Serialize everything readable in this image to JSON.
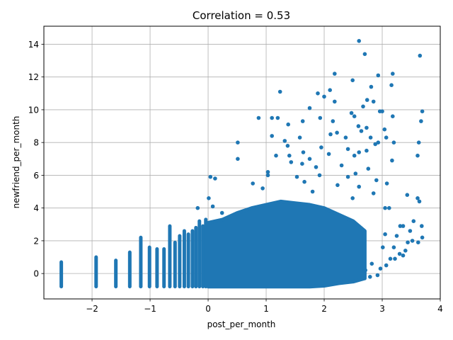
{
  "chart_data": {
    "type": "scatter",
    "title": "Correlation = 0.53",
    "xlabel": "post_per_month",
    "ylabel": "newfriend_per_month",
    "xlim": [
      -2.83,
      4.0
    ],
    "ylim": [
      -1.55,
      15.1
    ],
    "xticks": [
      -2,
      -1,
      0,
      1,
      2,
      3,
      4
    ],
    "yticks": [
      0,
      2,
      4,
      6,
      8,
      10,
      12,
      14
    ],
    "xtick_labels": [
      "−2",
      "−1",
      "0",
      "1",
      "2",
      "3",
      "4"
    ],
    "ytick_labels": [
      "0",
      "2",
      "4",
      "6",
      "8",
      "10",
      "12",
      "14"
    ],
    "grid": true,
    "marker_color": "#1f77b4",
    "columns": [
      {
        "x": -2.53,
        "ymin": -0.8,
        "ymax": 0.7
      },
      {
        "x": -1.93,
        "ymin": -0.8,
        "ymax": 1.0
      },
      {
        "x": -1.59,
        "ymin": -0.8,
        "ymax": 0.8
      },
      {
        "x": -1.35,
        "ymin": -0.8,
        "ymax": 1.3
      },
      {
        "x": -1.16,
        "ymin": -0.8,
        "ymax": 2.2
      },
      {
        "x": -1.01,
        "ymin": -0.8,
        "ymax": 1.6
      },
      {
        "x": -0.88,
        "ymin": -0.8,
        "ymax": 1.5
      },
      {
        "x": -0.76,
        "ymin": -0.8,
        "ymax": 1.5
      },
      {
        "x": -0.66,
        "ymin": -0.8,
        "ymax": 2.9
      },
      {
        "x": -0.57,
        "ymin": -0.8,
        "ymax": 1.9
      },
      {
        "x": -0.49,
        "ymin": -0.8,
        "ymax": 2.3
      },
      {
        "x": -0.41,
        "ymin": -0.8,
        "ymax": 2.6
      },
      {
        "x": -0.34,
        "ymin": -0.8,
        "ymax": 2.4
      },
      {
        "x": -0.27,
        "ymin": -0.8,
        "ymax": 2.6
      },
      {
        "x": -0.21,
        "ymin": -0.8,
        "ymax": 2.8
      },
      {
        "x": -0.15,
        "ymin": -0.8,
        "ymax": 3.2
      },
      {
        "x": -0.09,
        "ymin": -0.8,
        "ymax": 2.9
      },
      {
        "x": -0.04,
        "ymin": -0.8,
        "ymax": 3.3
      }
    ],
    "dense_band": [
      [
        0.0,
        -0.8,
        3.1
      ],
      [
        0.25,
        -0.8,
        3.3
      ],
      [
        0.5,
        -0.8,
        3.7
      ],
      [
        0.75,
        -0.8,
        4.0
      ],
      [
        1.0,
        -0.8,
        4.2
      ],
      [
        1.25,
        -0.8,
        4.4
      ],
      [
        1.5,
        -0.8,
        4.3
      ],
      [
        1.75,
        -0.8,
        4.2
      ],
      [
        2.0,
        -0.75,
        4.0
      ],
      [
        2.25,
        -0.6,
        3.6
      ],
      [
        2.5,
        -0.5,
        3.2
      ],
      [
        2.7,
        -0.3,
        2.6
      ]
    ],
    "points": [
      [
        2.6,
        14.2
      ],
      [
        2.7,
        13.4
      ],
      [
        3.65,
        13.3
      ],
      [
        2.18,
        12.2
      ],
      [
        2.49,
        11.8
      ],
      [
        3.18,
        12.2
      ],
      [
        2.93,
        12.1
      ],
      [
        3.16,
        11.5
      ],
      [
        2.81,
        11.4
      ],
      [
        2.1,
        11.2
      ],
      [
        1.89,
        11.0
      ],
      [
        1.24,
        11.1
      ],
      [
        2.0,
        10.8
      ],
      [
        2.74,
        10.6
      ],
      [
        2.85,
        10.5
      ],
      [
        2.18,
        10.5
      ],
      [
        1.75,
        10.1
      ],
      [
        2.67,
        10.2
      ],
      [
        2.96,
        9.9
      ],
      [
        3.0,
        9.9
      ],
      [
        3.69,
        9.9
      ],
      [
        1.1,
        9.5
      ],
      [
        1.2,
        9.5
      ],
      [
        0.87,
        9.5
      ],
      [
        1.93,
        9.5
      ],
      [
        2.47,
        9.8
      ],
      [
        2.52,
        9.6
      ],
      [
        3.18,
        9.6
      ],
      [
        3.67,
        9.3
      ],
      [
        2.15,
        9.3
      ],
      [
        1.38,
        9.1
      ],
      [
        1.63,
        9.3
      ],
      [
        2.59,
        9.0
      ],
      [
        2.73,
        8.9
      ],
      [
        3.04,
        8.8
      ],
      [
        2.64,
        8.7
      ],
      [
        3.07,
        8.3
      ],
      [
        2.22,
        8.6
      ],
      [
        2.37,
        8.3
      ],
      [
        2.11,
        8.5
      ],
      [
        1.1,
        8.4
      ],
      [
        1.32,
        8.1
      ],
      [
        3.2,
        8.0
      ],
      [
        0.51,
        8.0
      ],
      [
        1.58,
        8.3
      ],
      [
        2.8,
        8.3
      ],
      [
        2.93,
        8.0
      ],
      [
        3.63,
        8.0
      ],
      [
        1.37,
        7.8
      ],
      [
        2.73,
        7.5
      ],
      [
        2.88,
        7.9
      ],
      [
        2.41,
        7.6
      ],
      [
        1.95,
        7.7
      ],
      [
        1.17,
        7.2
      ],
      [
        1.4,
        7.2
      ],
      [
        1.64,
        7.4
      ],
      [
        2.08,
        7.3
      ],
      [
        2.52,
        7.2
      ],
      [
        2.6,
        7.4
      ],
      [
        3.61,
        7.2
      ],
      [
        0.51,
        7.0
      ],
      [
        1.75,
        7.0
      ],
      [
        1.43,
        6.8
      ],
      [
        1.62,
        6.7
      ],
      [
        1.86,
        6.5
      ],
      [
        2.3,
        6.6
      ],
      [
        3.17,
        6.9
      ],
      [
        1.03,
        6.2
      ],
      [
        1.92,
        6.0
      ],
      [
        2.76,
        6.4
      ],
      [
        2.54,
        6.1
      ],
      [
        3.08,
        5.5
      ],
      [
        0.04,
        5.9
      ],
      [
        0.12,
        5.8
      ],
      [
        0.77,
        5.5
      ],
      [
        1.53,
        5.9
      ],
      [
        1.03,
        6.0
      ],
      [
        2.41,
        5.9
      ],
      [
        3.61,
        4.6
      ],
      [
        3.64,
        4.4
      ],
      [
        3.43,
        4.8
      ],
      [
        3.05,
        4.0
      ],
      [
        3.12,
        4.0
      ],
      [
        3.54,
        3.2
      ],
      [
        3.36,
        2.9
      ],
      [
        3.31,
        2.9
      ],
      [
        3.68,
        2.9
      ],
      [
        3.69,
        2.2
      ],
      [
        3.52,
        2.0
      ],
      [
        3.44,
        1.9
      ],
      [
        3.4,
        1.4
      ],
      [
        3.3,
        1.2
      ],
      [
        3.36,
        1.1
      ],
      [
        3.22,
        0.9
      ],
      [
        3.2,
        1.6
      ],
      [
        3.05,
        2.4
      ],
      [
        3.07,
        0.5
      ],
      [
        2.97,
        0.3
      ],
      [
        2.82,
        0.6
      ],
      [
        2.71,
        0.2
      ],
      [
        2.92,
        -0.1
      ],
      [
        2.79,
        -0.2
      ],
      [
        2.68,
        -0.05
      ],
      [
        3.14,
        0.9
      ],
      [
        3.62,
        1.9
      ],
      [
        3.48,
        2.6
      ],
      [
        -0.18,
        4.0
      ],
      [
        0.01,
        4.6
      ],
      [
        0.08,
        4.1
      ],
      [
        0.24,
        3.7
      ],
      [
        2.49,
        4.6
      ],
      [
        2.85,
        4.9
      ],
      [
        3.25,
        2.3
      ],
      [
        3.01,
        1.6
      ],
      [
        2.6,
        5.3
      ],
      [
        2.9,
        5.7
      ],
      [
        2.23,
        5.4
      ],
      [
        1.8,
        5.0
      ],
      [
        0.94,
        5.2
      ],
      [
        1.66,
        5.6
      ]
    ]
  }
}
